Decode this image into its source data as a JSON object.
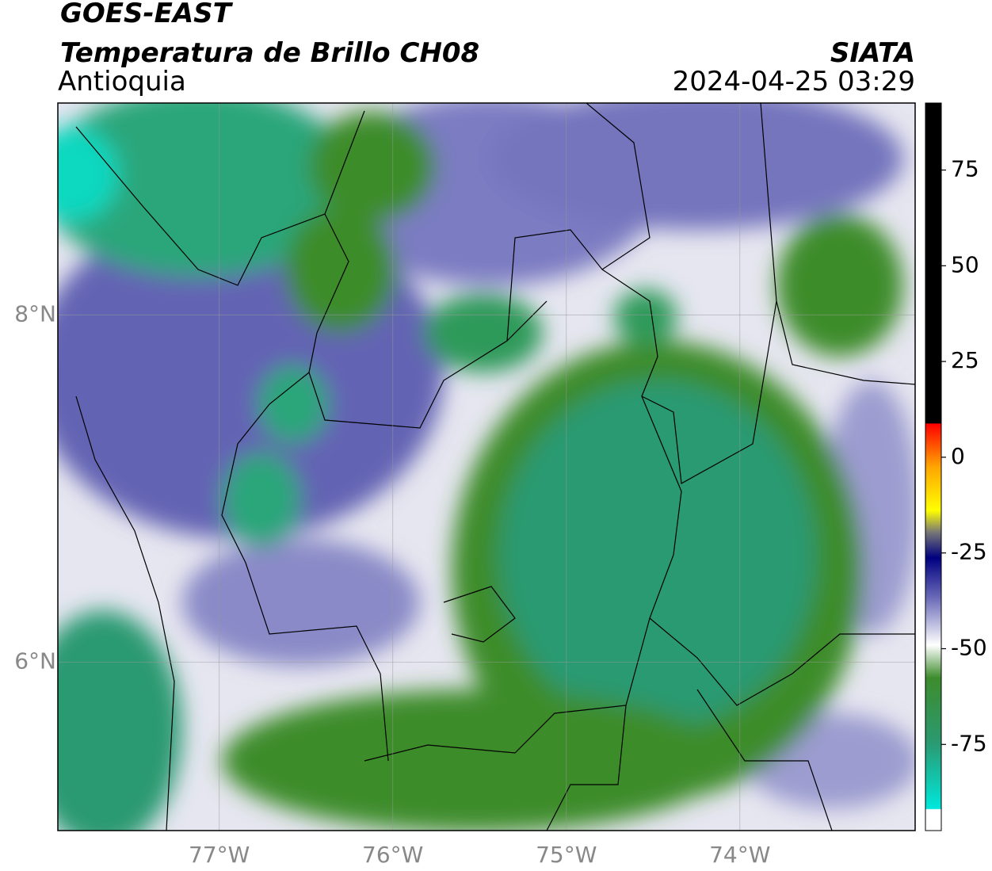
{
  "title": "GOES-EAST",
  "subtitle": "Temperatura de Brillo CH08",
  "region": "Antioquia",
  "source": "SIATA",
  "datetime": "2024-04-25 03:29",
  "map": {
    "xlim": [
      -77.93,
      -72.99
    ],
    "ylim": [
      5.03,
      9.22
    ],
    "xticks": [
      {
        "value": -77,
        "label": "77°W"
      },
      {
        "value": -76,
        "label": "76°W"
      },
      {
        "value": -75,
        "label": "75°W"
      },
      {
        "value": -74,
        "label": "74°W"
      }
    ],
    "yticks": [
      {
        "value": 8,
        "label": "8°N"
      },
      {
        "value": 6,
        "label": "6°N"
      }
    ],
    "grid": true
  },
  "colorbar": {
    "clim": [
      -97.5,
      92.5
    ],
    "ticks": [
      75,
      50,
      25,
      0,
      -25,
      -50,
      -75
    ]
  }
}
